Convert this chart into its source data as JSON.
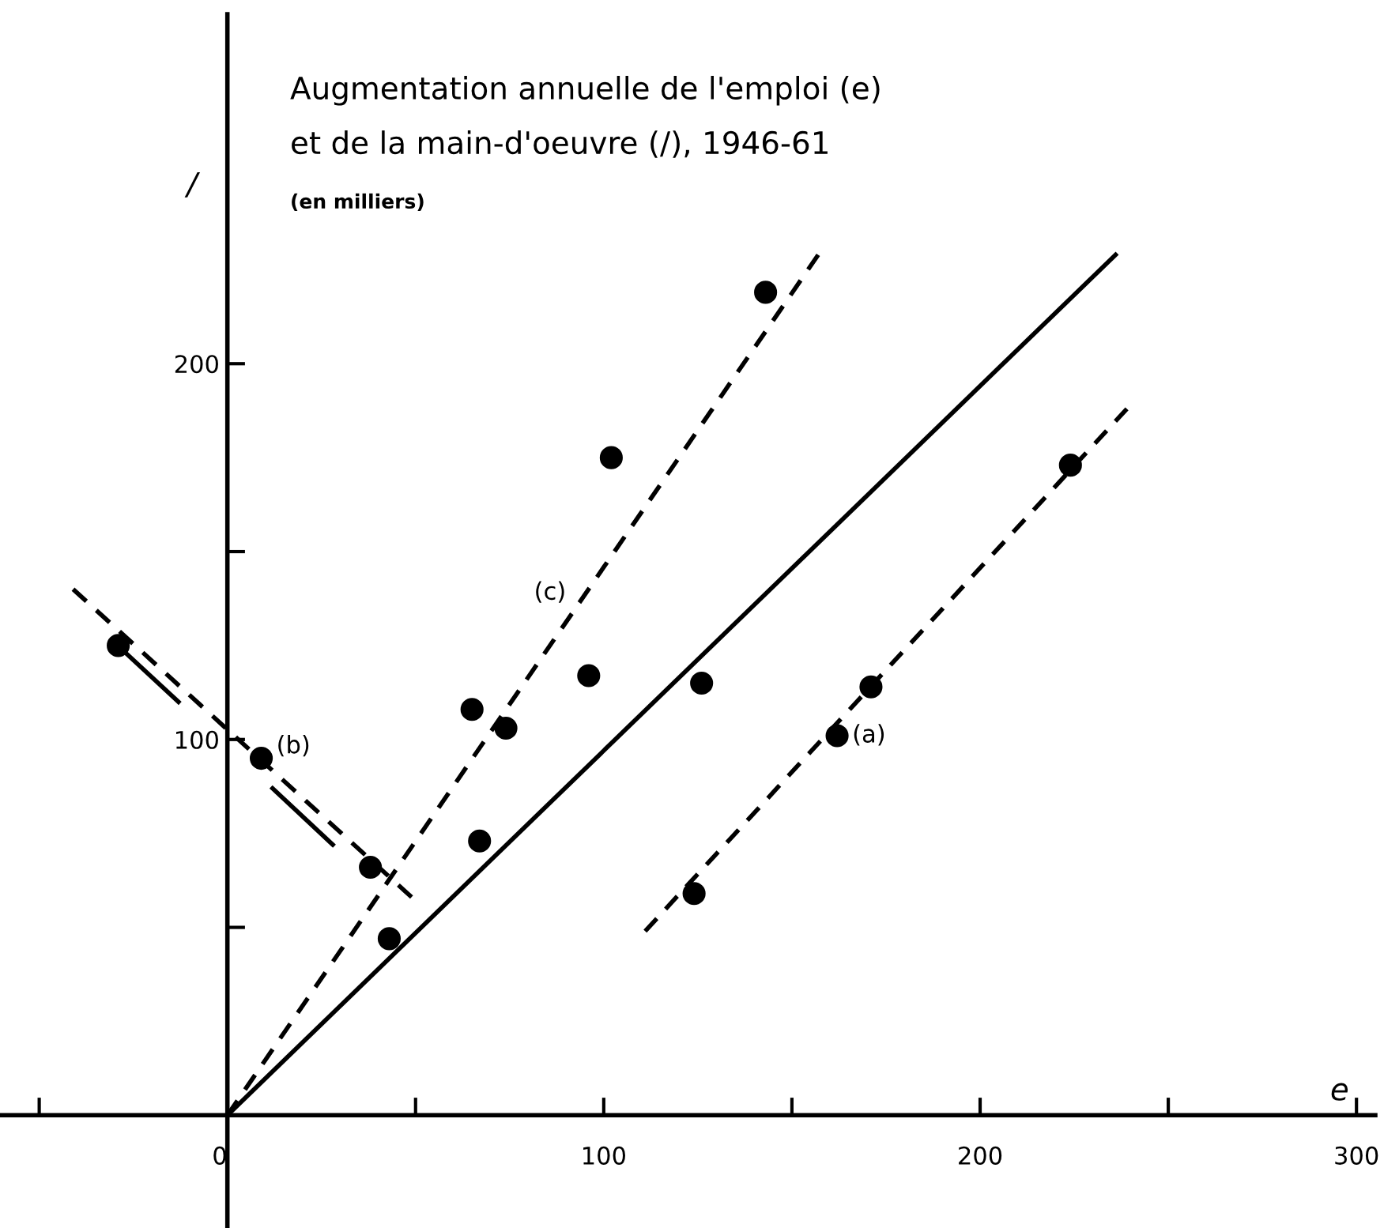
{
  "chart_data": {
    "type": "scatter",
    "title": "Augmentation annuelle de l'emploi (e)",
    "subtitle": "et de la main-d'oeuvre (/), 1946-61",
    "xlabel": "e",
    "ylabel": "/",
    "series": [
      {
        "color": "#000000",
        "marker": "circle",
        "x": [
          143,
          102,
          65,
          74,
          96,
          126,
          171,
          162,
          224,
          124,
          -29,
          9,
          38,
          43,
          67
        ],
        "values": [
          219,
          175,
          108,
          103,
          117,
          115,
          114,
          101,
          173,
          59,
          125,
          95,
          66,
          47,
          73
        ]
      },
      {
        "type": "line",
        "color": "#000000",
        "line_style": "solid",
        "marker": "none",
        "x": [
          0,
          236
        ],
        "values": [
          0,
          229
        ]
      },
      {
        "type": "line",
        "color": "#000000",
        "line_style": "dashed",
        "marker": "none",
        "x": [
          0,
          157
        ],
        "values": [
          0,
          229
        ]
      },
      {
        "type": "line",
        "color": "#000000",
        "line_style": "dashed",
        "marker": "none",
        "x": [
          111,
          239
        ],
        "values": [
          49,
          188
        ]
      },
      {
        "type": "line",
        "color": "#000000",
        "line_style": "dashed",
        "marker": "none",
        "x": [
          -41,
          49
        ],
        "values": [
          140,
          58
        ]
      },
      {
        "type": "line",
        "color": "#000000",
        "line_style": "solid",
        "marker": "none",
        "x": [
          -13,
          -27
        ],
        "values": [
          110,
          123
        ]
      },
      {
        "type": "line",
        "color": "#000000",
        "line_style": "solid",
        "marker": "none",
        "x": [
          28,
          12
        ],
        "values": [
          72,
          87
        ]
      }
    ],
    "annotations": [
      "(en milliers)",
      {
        "text": "(a)",
        "x": 162,
        "y": 101
      },
      {
        "text": "(b)",
        "x": 9,
        "y": 95
      },
      {
        "text": "(c)",
        "x": 95,
        "y": 139
      }
    ],
    "xlim": [
      -60,
      305
    ],
    "ylim": [
      -30,
      293
    ],
    "xticks": [
      {
        "value": -50,
        "label": null
      },
      0,
      {
        "value": 50,
        "label": null
      },
      100,
      {
        "value": 150,
        "label": null
      },
      200,
      {
        "value": 250,
        "label": null
      },
      300
    ],
    "yticks": [
      {
        "value": 50,
        "label": null
      },
      100,
      {
        "value": 150,
        "label": null
      },
      200
    ],
    "grid": false,
    "legend": false
  }
}
